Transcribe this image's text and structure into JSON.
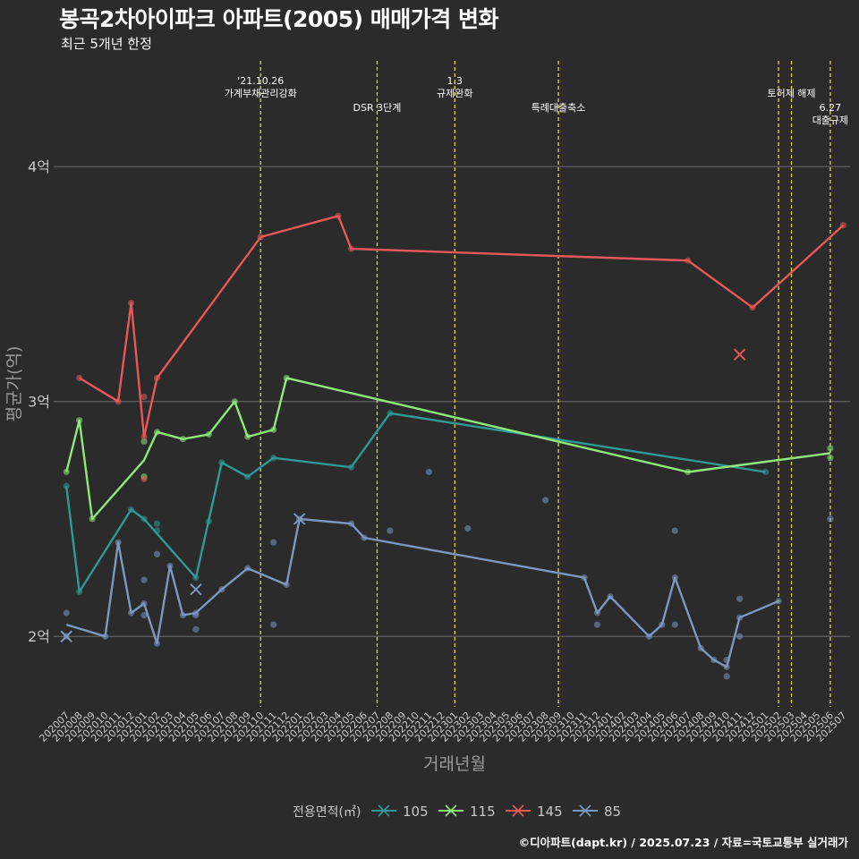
{
  "header": {
    "title": "봉곡2차아이파크 아파트(2005) 매매가격 변화",
    "subtitle": "최근 5개년 한정"
  },
  "footer": {
    "credit": "©디아파트(dapt.kr) / 2025.07.23 / 자료=국토교통부 실거래가"
  },
  "colors": {
    "background": "#2b2b2b",
    "grid": "#6e6e6e",
    "event_line": "#e8e83a",
    "axis_text": "#c8c8c8",
    "title_text": "#ffffff"
  },
  "chart_data": {
    "type": "line",
    "title": "봉곡2차아이파크 아파트(2005) 매매가격 변화",
    "subtitle": "최근 5개년 한정",
    "xlabel": "거래년월",
    "ylabel": "평균가(억)",
    "ylim": [
      1.7,
      4.45
    ],
    "yticks": [
      {
        "value": 2,
        "label": "2억"
      },
      {
        "value": 3,
        "label": "3억"
      },
      {
        "value": 4,
        "label": "4억"
      }
    ],
    "grid": true,
    "legend": {
      "title": "전용면적(㎡)",
      "position": "bottom"
    },
    "x_categories": [
      "202007",
      "202008",
      "202009",
      "202010",
      "202011",
      "202012",
      "202101",
      "202102",
      "202103",
      "202104",
      "202105",
      "202106",
      "202107",
      "202108",
      "202109",
      "202110",
      "202111",
      "202112",
      "202201",
      "202202",
      "202203",
      "202204",
      "202205",
      "202206",
      "202207",
      "202208",
      "202209",
      "202210",
      "202211",
      "202212",
      "202301",
      "202302",
      "202303",
      "202304",
      "202305",
      "202306",
      "202307",
      "202308",
      "202309",
      "202310",
      "202311",
      "202312",
      "202401",
      "202402",
      "202403",
      "202404",
      "202405",
      "202406",
      "202407",
      "202408",
      "202409",
      "202410",
      "202411",
      "202412",
      "202501",
      "202502",
      "202503",
      "202504",
      "202505",
      "202506",
      "202507"
    ],
    "events": [
      {
        "x": "202110",
        "label_lines": [
          "'21.10.26",
          "가계부채관리강화"
        ],
        "label_row": 0
      },
      {
        "x": "202207",
        "label_lines": [
          "DSR 3단계"
        ],
        "label_row": 2
      },
      {
        "x": "202301",
        "label_lines": [
          "1.3",
          "규제완화"
        ],
        "label_row": 0
      },
      {
        "x": "202309",
        "label_lines": [
          "특례대출축소"
        ],
        "label_row": 2
      },
      {
        "x": "202502",
        "label_lines": [],
        "label_row": 1
      },
      {
        "x": "202503",
        "label_lines": [
          "토허제 해제"
        ],
        "label_row": 1
      },
      {
        "x": "202506",
        "label_lines": [
          "6.27",
          "대출규제"
        ],
        "label_row": 2
      }
    ],
    "series": [
      {
        "name": "105",
        "color": "#2e9a96",
        "line": [
          [
            "202007",
            2.64
          ],
          [
            "202008",
            2.19
          ],
          [
            "202012",
            2.54
          ],
          [
            "202101",
            2.5
          ],
          [
            "202105",
            2.25
          ],
          [
            "202107",
            2.74
          ],
          [
            "202109",
            2.68
          ],
          [
            "202111",
            2.76
          ],
          [
            "202205",
            2.72
          ],
          [
            "202208",
            2.95
          ],
          [
            "202501",
            2.7
          ]
        ],
        "points": [
          [
            "202007",
            2.64
          ],
          [
            "202008",
            2.19
          ],
          [
            "202012",
            2.54
          ],
          [
            "202101",
            2.5
          ],
          [
            "202102",
            2.45
          ],
          [
            "202102",
            2.48
          ],
          [
            "202105",
            2.25
          ],
          [
            "202106",
            2.49
          ],
          [
            "202107",
            2.74
          ],
          [
            "202109",
            2.68
          ],
          [
            "202111",
            2.76
          ],
          [
            "202205",
            2.72
          ],
          [
            "202208",
            2.95
          ],
          [
            "202501",
            2.7
          ]
        ],
        "x_marks": []
      },
      {
        "name": "115",
        "color": "#8ee87a",
        "line": [
          [
            "202007",
            2.7
          ],
          [
            "202008",
            2.92
          ],
          [
            "202009",
            2.5
          ],
          [
            "202101",
            2.75
          ],
          [
            "202102",
            2.87
          ],
          [
            "202104",
            2.84
          ],
          [
            "202106",
            2.86
          ],
          [
            "202108",
            3.0
          ],
          [
            "202109",
            2.85
          ],
          [
            "202111",
            2.88
          ],
          [
            "202112",
            3.1
          ],
          [
            "202407",
            2.7
          ],
          [
            "202506",
            2.78
          ]
        ],
        "points": [
          [
            "202007",
            2.7
          ],
          [
            "202008",
            2.92
          ],
          [
            "202009",
            2.5
          ],
          [
            "202101",
            2.83
          ],
          [
            "202101",
            2.68
          ],
          [
            "202102",
            2.87
          ],
          [
            "202104",
            2.84
          ],
          [
            "202106",
            2.86
          ],
          [
            "202108",
            3.0
          ],
          [
            "202109",
            2.85
          ],
          [
            "202111",
            2.88
          ],
          [
            "202112",
            3.1
          ],
          [
            "202407",
            2.7
          ],
          [
            "202506",
            2.8
          ],
          [
            "202506",
            2.76
          ]
        ],
        "x_marks": []
      },
      {
        "name": "145",
        "color": "#e85858",
        "line": [
          [
            "202008",
            3.1
          ],
          [
            "202011",
            3.0
          ],
          [
            "202012",
            3.42
          ],
          [
            "202101",
            2.85
          ],
          [
            "202102",
            3.1
          ],
          [
            "202110",
            3.7
          ],
          [
            "202204",
            3.79
          ],
          [
            "202205",
            3.65
          ],
          [
            "202407",
            3.6
          ],
          [
            "202412",
            3.4
          ],
          [
            "202507",
            3.75
          ]
        ],
        "points": [
          [
            "202008",
            3.1
          ],
          [
            "202011",
            3.0
          ],
          [
            "202012",
            3.42
          ],
          [
            "202101",
            3.02
          ],
          [
            "202101",
            2.85
          ],
          [
            "202101",
            2.67
          ],
          [
            "202102",
            3.1
          ],
          [
            "202110",
            3.7
          ],
          [
            "202204",
            3.79
          ],
          [
            "202205",
            3.65
          ],
          [
            "202407",
            3.6
          ],
          [
            "202412",
            3.4
          ],
          [
            "202507",
            3.75
          ]
        ],
        "x_marks": [
          [
            "202411",
            3.2
          ]
        ]
      },
      {
        "name": "85",
        "color": "#7b98c2",
        "line": [
          [
            "202007",
            2.05
          ],
          [
            "202010",
            2.0
          ],
          [
            "202011",
            2.4
          ],
          [
            "202012",
            2.1
          ],
          [
            "202101",
            2.14
          ],
          [
            "202102",
            1.97
          ],
          [
            "202103",
            2.3
          ],
          [
            "202104",
            2.09
          ],
          [
            "202105",
            2.1
          ],
          [
            "202107",
            2.2
          ],
          [
            "202109",
            2.29
          ],
          [
            "202112",
            2.22
          ],
          [
            "202201",
            2.5
          ],
          [
            "202205",
            2.48
          ],
          [
            "202206",
            2.42
          ],
          [
            "202311",
            2.25
          ],
          [
            "202312",
            2.1
          ],
          [
            "202401",
            2.17
          ],
          [
            "202404",
            2.0
          ],
          [
            "202405",
            2.05
          ],
          [
            "202406",
            2.25
          ],
          [
            "202408",
            1.95
          ],
          [
            "202409",
            1.9
          ],
          [
            "202410",
            1.87
          ],
          [
            "202411",
            2.08
          ],
          [
            "202502",
            2.15
          ]
        ],
        "points": [
          [
            "202007",
            2.1
          ],
          [
            "202007",
            2.0
          ],
          [
            "202010",
            2.0
          ],
          [
            "202011",
            2.4
          ],
          [
            "202012",
            2.1
          ],
          [
            "202101",
            2.24
          ],
          [
            "202101",
            2.14
          ],
          [
            "202101",
            2.09
          ],
          [
            "202102",
            2.35
          ],
          [
            "202102",
            1.97
          ],
          [
            "202103",
            2.3
          ],
          [
            "202104",
            2.09
          ],
          [
            "202105",
            2.09
          ],
          [
            "202105",
            2.03
          ],
          [
            "202105",
            2.1
          ],
          [
            "202107",
            2.2
          ],
          [
            "202109",
            2.29
          ],
          [
            "202111",
            2.4
          ],
          [
            "202111",
            2.05
          ],
          [
            "202112",
            2.22
          ],
          [
            "202201",
            2.5
          ],
          [
            "202205",
            2.48
          ],
          [
            "202206",
            2.42
          ],
          [
            "202208",
            2.45
          ],
          [
            "202211",
            2.7
          ],
          [
            "202302",
            2.46
          ],
          [
            "202308",
            2.58
          ],
          [
            "202311",
            2.25
          ],
          [
            "202312",
            2.1
          ],
          [
            "202312",
            2.05
          ],
          [
            "202401",
            2.17
          ],
          [
            "202404",
            2.0
          ],
          [
            "202405",
            2.05
          ],
          [
            "202406",
            2.45
          ],
          [
            "202406",
            2.05
          ],
          [
            "202406",
            2.25
          ],
          [
            "202408",
            1.95
          ],
          [
            "202409",
            1.9
          ],
          [
            "202410",
            1.87
          ],
          [
            "202410",
            1.9
          ],
          [
            "202410",
            1.83
          ],
          [
            "202411",
            2.0
          ],
          [
            "202411",
            2.08
          ],
          [
            "202411",
            2.16
          ],
          [
            "202502",
            2.15
          ],
          [
            "202506",
            2.5
          ]
        ],
        "x_marks": [
          [
            "202007",
            2.0
          ],
          [
            "202105",
            2.2
          ],
          [
            "202201",
            2.5
          ]
        ]
      }
    ]
  }
}
